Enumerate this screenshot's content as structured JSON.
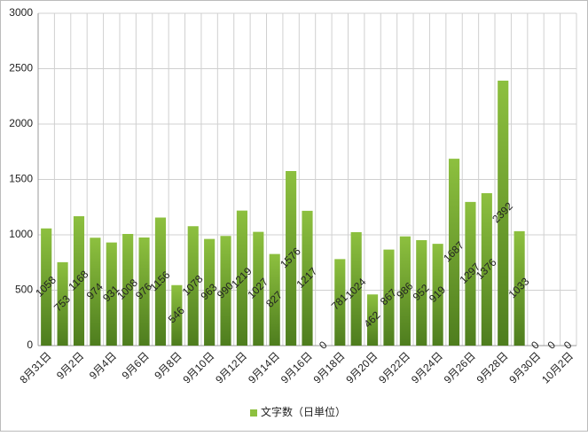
{
  "chart_data": {
    "type": "bar",
    "categories": [
      "8月31日",
      null,
      "9月2日",
      null,
      "9月4日",
      null,
      "9月6日",
      null,
      "9月8日",
      null,
      "9月10日",
      null,
      "9月12日",
      null,
      "9月14日",
      null,
      "9月16日",
      null,
      "9月18日",
      null,
      "9月20日",
      null,
      "9月22日",
      null,
      "9月24日",
      null,
      "9月26日",
      null,
      "9月28日",
      null,
      "9月30日",
      null,
      "10月2日"
    ],
    "series": [
      {
        "name": "文字数（日単位）",
        "color": "#8dc03f",
        "values": [
          1058,
          753,
          1168,
          974,
          931,
          1008,
          976,
          1156,
          546,
          1078,
          963,
          990,
          1219,
          1027,
          827,
          1576,
          1217,
          0,
          781,
          1024,
          462,
          867,
          986,
          952,
          919,
          1687,
          1297,
          1376,
          2392,
          1033,
          0,
          0,
          0
        ]
      }
    ],
    "ylim": [
      0,
      3000
    ],
    "yticks": [
      0,
      500,
      1000,
      1500,
      2000,
      2500,
      3000
    ],
    "grid": true,
    "legend": "bottom"
  }
}
